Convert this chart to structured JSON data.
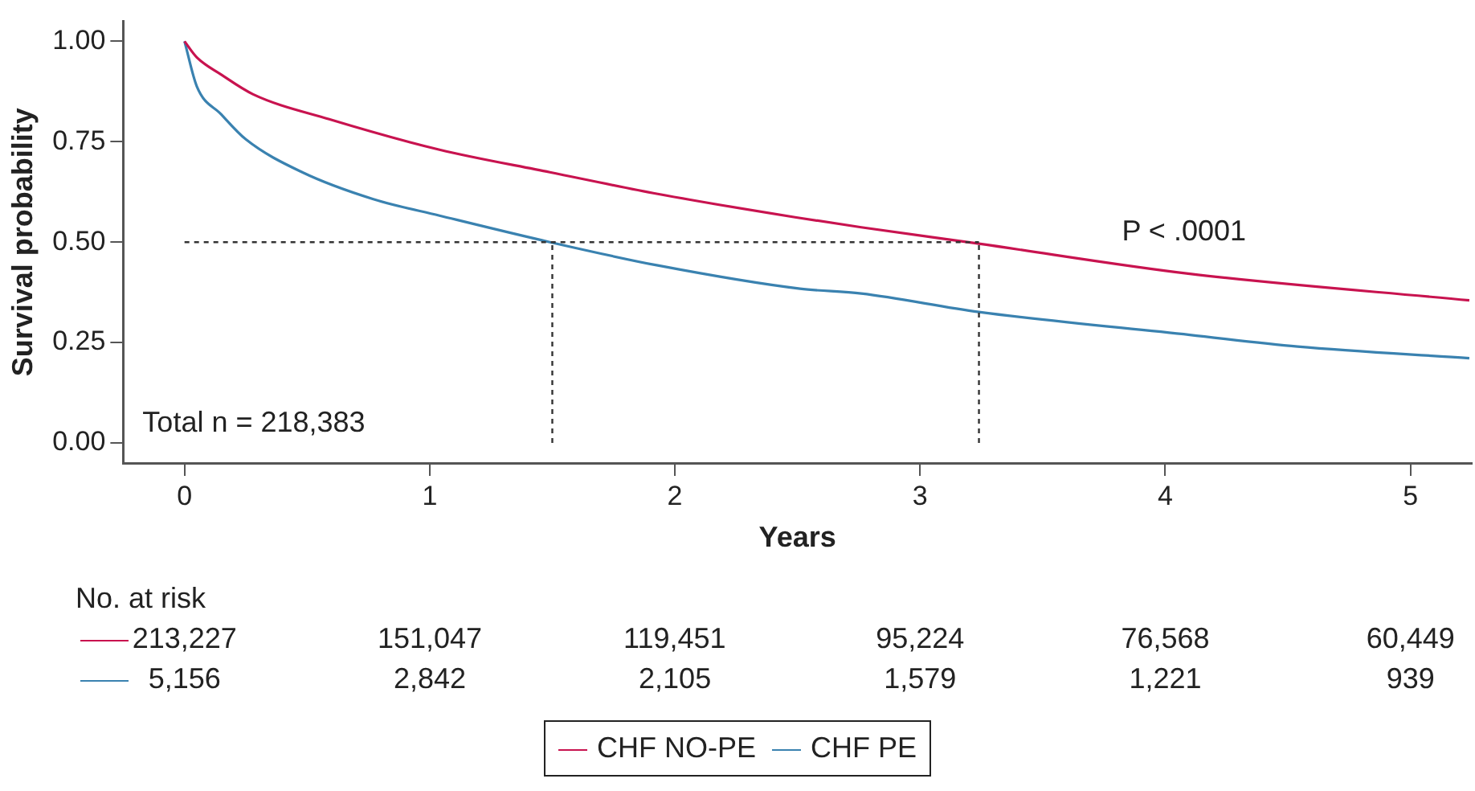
{
  "chart_data": {
    "type": "line",
    "xlabel": "Years",
    "ylabel": "Survival probability",
    "xlim": [
      -0.25,
      5.25
    ],
    "xticks": [
      0,
      1,
      2,
      3,
      4,
      5
    ],
    "ylim": [
      -0.05,
      1.05
    ],
    "yticks": [
      {
        "value": 0,
        "label": "0.00"
      },
      {
        "value": 0.25,
        "label": "0.25"
      },
      {
        "value": 0.5,
        "label": "0.50"
      },
      {
        "value": 0.75,
        "label": "0.75"
      },
      {
        "value": 1,
        "label": "1.00"
      }
    ],
    "grid": false,
    "legend": "bottom",
    "marker": "none",
    "line_style": "solid",
    "series": [
      {
        "name": "CHF NO-PE",
        "color": "#c8134f",
        "x": [
          0,
          0.05,
          0.15,
          0.28,
          0.59,
          1.04,
          1.49,
          1.93,
          2.49,
          2.76,
          3.24,
          4.1,
          5.24
        ],
        "values": [
          1,
          0.96,
          0.917,
          0.868,
          0.806,
          0.73,
          0.674,
          0.62,
          0.562,
          0.537,
          0.496,
          0.421,
          0.355
        ]
      },
      {
        "name": "CHF PE",
        "color": "#3a82b0",
        "x": [
          0,
          0.05,
          0.15,
          0.25,
          0.48,
          0.77,
          1.04,
          1.49,
          1.93,
          2.51,
          2.76,
          3.24,
          4.1,
          4.54,
          5.24
        ],
        "values": [
          1,
          0.888,
          0.818,
          0.756,
          0.674,
          0.607,
          0.566,
          0.5,
          0.442,
          0.384,
          0.372,
          0.326,
          0.269,
          0.24,
          0.211
        ]
      }
    ],
    "ref_lines": [
      {
        "axis": "y",
        "value": 0.5,
        "color": "#333333",
        "line_style": "dotted"
      },
      {
        "axis": "x",
        "value": 1.5,
        "color": "#333333",
        "line_style": "dotted"
      },
      {
        "axis": "x",
        "value": 3.24,
        "color": "#333333",
        "line_style": "dotted"
      }
    ],
    "annotations": [
      "Total n = 218,383",
      "P < .0001",
      "No. at risk",
      "213,227",
      "151,047",
      "119,451",
      "95,224",
      "76,568",
      "60,449",
      "5,156",
      "2,842",
      "2,105",
      "1,579",
      "1,221",
      "939"
    ]
  }
}
